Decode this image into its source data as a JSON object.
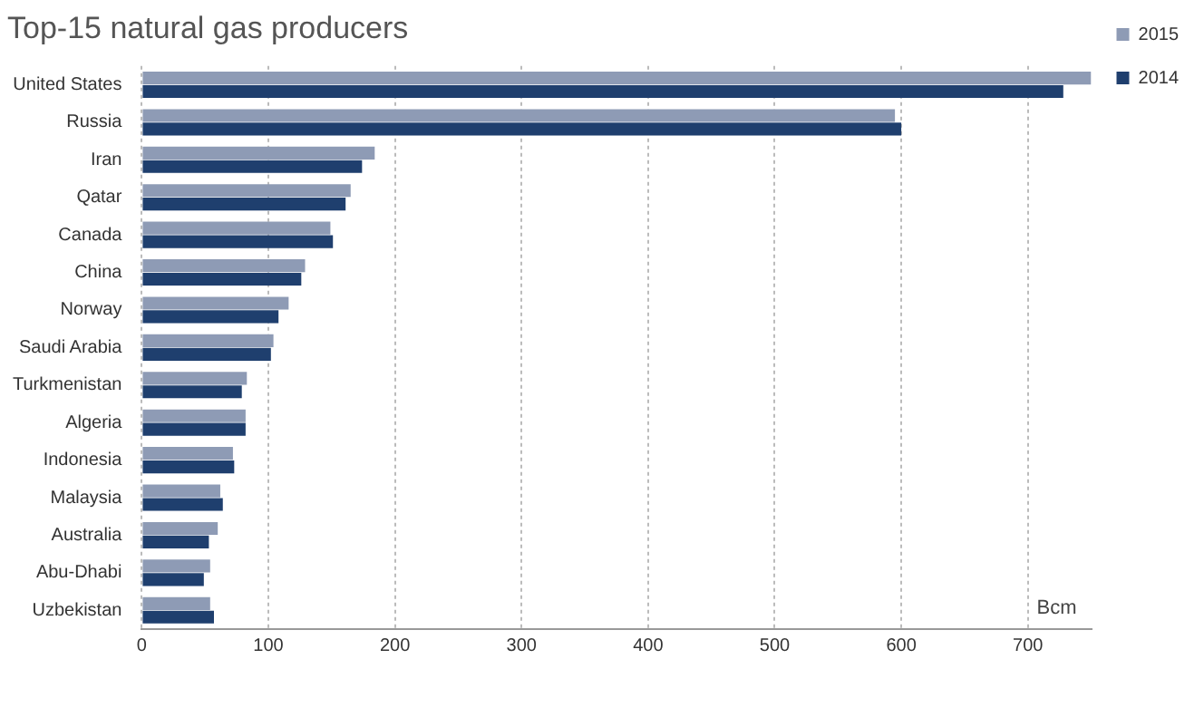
{
  "chart_data": {
    "type": "bar",
    "orientation": "horizontal",
    "title": "Top-15 natural gas producers",
    "categories": [
      "United States",
      "Russia",
      "Iran",
      "Qatar",
      "Canada",
      "China",
      "Norway",
      "Saudi Arabia",
      "Turkmenistan",
      "Algeria",
      "Indonesia",
      "Malaysia",
      "Australia",
      "Abu-Dhabi",
      "Uzbekistan"
    ],
    "series": [
      {
        "name": "2015",
        "color": "#8e9bb5",
        "values": [
          750,
          595,
          184,
          165,
          149,
          129,
          116,
          104,
          83,
          82,
          72,
          62,
          60,
          54,
          54
        ]
      },
      {
        "name": "2014",
        "color": "#1f3f6e",
        "values": [
          728,
          600,
          174,
          161,
          151,
          126,
          108,
          102,
          79,
          82,
          73,
          64,
          53,
          49,
          57
        ]
      }
    ],
    "xlim": [
      0,
      750
    ],
    "xticks": [
      0,
      100,
      200,
      300,
      400,
      500,
      600,
      700
    ],
    "grid": "x",
    "legend": "right",
    "annotations": [
      "Bcm"
    ]
  }
}
